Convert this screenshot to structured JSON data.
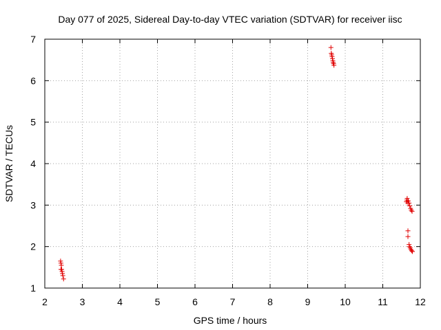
{
  "chart_data": {
    "type": "scatter",
    "title": "Day 077 of 2025, Sidereal Day-to-day VTEC variation (SDTVAR) for receiver iisc",
    "xlabel": "GPS time / hours",
    "ylabel": "SDTVAR / TECUs",
    "xlim": [
      2,
      12
    ],
    "ylim": [
      1,
      7
    ],
    "xticks": [
      2,
      3,
      4,
      5,
      6,
      7,
      8,
      9,
      10,
      11,
      12
    ],
    "yticks": [
      1,
      2,
      3,
      4,
      5,
      6,
      7
    ],
    "xtick_labels": [
      "2",
      "3",
      "4",
      "5",
      "6",
      "7",
      "8",
      "9",
      "10",
      "11",
      "12"
    ],
    "ytick_labels": [
      "1",
      "2",
      "3",
      "4",
      "5",
      "6",
      "7"
    ],
    "grid": true,
    "marker": "+",
    "series": [
      {
        "name": "iisc",
        "color": "#e00000",
        "points": [
          [
            2.42,
            1.65
          ],
          [
            2.43,
            1.6
          ],
          [
            2.44,
            1.55
          ],
          [
            2.43,
            1.45
          ],
          [
            2.45,
            1.45
          ],
          [
            2.46,
            1.4
          ],
          [
            2.47,
            1.35
          ],
          [
            2.48,
            1.3
          ],
          [
            2.5,
            1.22
          ],
          [
            9.62,
            6.8
          ],
          [
            9.63,
            6.66
          ],
          [
            9.64,
            6.62
          ],
          [
            9.65,
            6.58
          ],
          [
            9.66,
            6.53
          ],
          [
            9.67,
            6.48
          ],
          [
            9.68,
            6.44
          ],
          [
            9.69,
            6.41
          ],
          [
            9.7,
            6.37
          ],
          [
            11.63,
            3.08
          ],
          [
            11.64,
            3.12
          ],
          [
            11.65,
            3.16
          ],
          [
            11.67,
            3.05
          ],
          [
            11.68,
            3.1
          ],
          [
            11.7,
            3.05
          ],
          [
            11.72,
            2.98
          ],
          [
            11.74,
            2.92
          ],
          [
            11.76,
            2.88
          ],
          [
            11.78,
            2.85
          ],
          [
            11.67,
            2.38
          ],
          [
            11.67,
            2.24
          ],
          [
            11.7,
            2.05
          ],
          [
            11.71,
            2.0
          ],
          [
            11.73,
            1.97
          ],
          [
            11.75,
            1.93
          ],
          [
            11.77,
            1.9
          ],
          [
            11.79,
            1.88
          ]
        ]
      }
    ]
  }
}
